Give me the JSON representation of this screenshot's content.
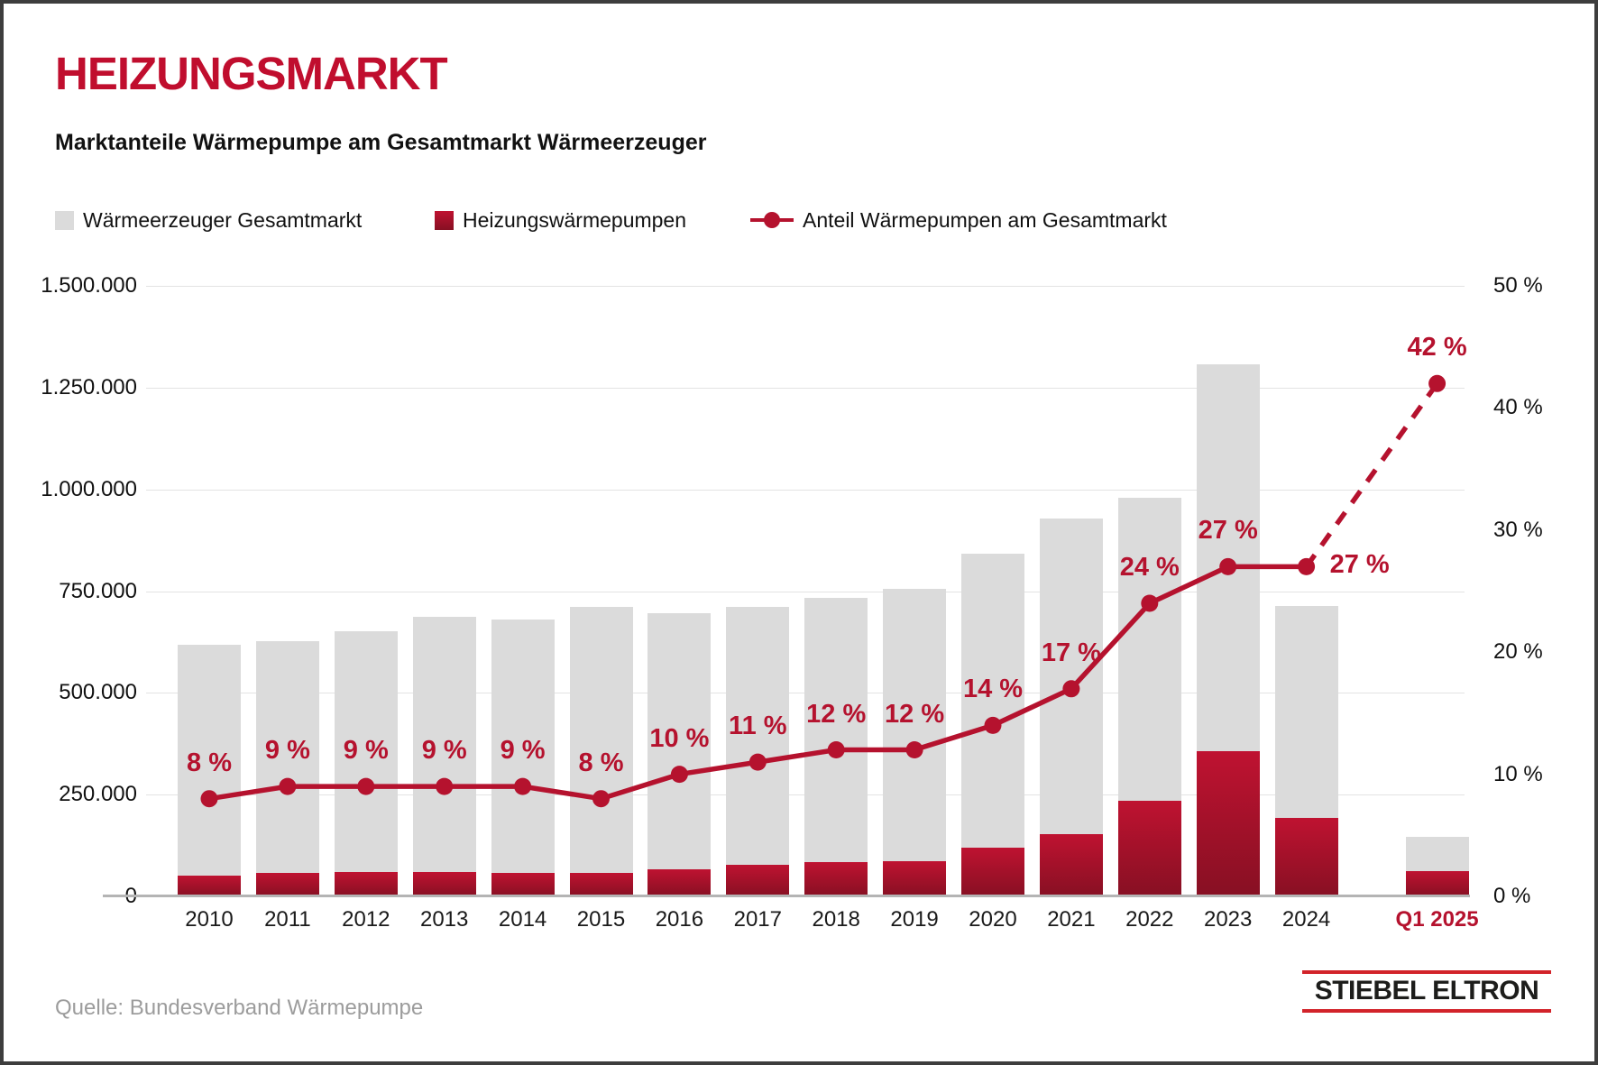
{
  "page": {
    "title": "HEIZUNGSMARKT",
    "subtitle": "Marktanteile Wärmepumpe am Gesamtmarkt Wärmeerzeuger",
    "source": "Quelle: Bundesverband Wärmepumpe",
    "logo_text": "STIEBEL ELTRON"
  },
  "legend": [
    {
      "marker": "gray-square",
      "label": "Wärmeerzeuger Gesamtmarkt"
    },
    {
      "marker": "red-square",
      "label": "Heizungswärmepumpen"
    },
    {
      "marker": "red-line-dot",
      "label": "Anteil Wärmepumpen am Gesamtmarkt"
    }
  ],
  "colors": {
    "title_red": "#c00e2e",
    "line_red": "#b5122e",
    "bar_red_top": "#bf1231",
    "bar_red_bottom": "#871023",
    "bar_gray": "#dbdbdb",
    "gridline": "#e3e3e3",
    "baseline": "#b4b4b4",
    "source_gray": "#9c9c9c",
    "logo_red": "#d2232a"
  },
  "chart_data": {
    "type": "bar",
    "subtype": "combo-bar-line-dual-axis",
    "categories": [
      "2010",
      "2011",
      "2012",
      "2013",
      "2014",
      "2015",
      "2016",
      "2017",
      "2018",
      "2019",
      "2020",
      "2021",
      "2022",
      "2023",
      "2024",
      "Q1 2025"
    ],
    "highlight_category_index": 15,
    "series": [
      {
        "name": "Wärmeerzeuger Gesamtmarkt",
        "type": "bar",
        "axis": "left",
        "values": [
          617500,
          627500,
          650500,
          686500,
          679500,
          712000,
          695500,
          712000,
          732500,
          755500,
          843000,
          929000,
          980000,
          1308000,
          712500,
          146500
        ]
      },
      {
        "name": "Heizungswärmepumpen",
        "type": "bar",
        "axis": "left",
        "values": [
          51000,
          57000,
          59500,
          60000,
          58000,
          57000,
          66500,
          78000,
          84000,
          86000,
          120000,
          154000,
          236000,
          356000,
          193000,
          62000
        ]
      },
      {
        "name": "Anteil Wärmepumpen am Gesamtmarkt",
        "type": "line",
        "axis": "right",
        "values": [
          8,
          9,
          9,
          9,
          9,
          8,
          10,
          11,
          12,
          12,
          14,
          17,
          24,
          27,
          27,
          42
        ],
        "point_labels": [
          "8 %",
          "9 %",
          "9 %",
          "9 %",
          "9 %",
          "8 %",
          "10 %",
          "11 %",
          "12 %",
          "12 %",
          "14 %",
          "17 %",
          "24 %",
          "27 %",
          "27 %",
          "42 %"
        ],
        "point_label_pos": [
          "above",
          "above",
          "above",
          "above",
          "above",
          "above",
          "above",
          "above",
          "above",
          "above",
          "above",
          "above",
          "above",
          "above",
          "right",
          "above"
        ],
        "dashed_from_index": 14
      }
    ],
    "y_left": {
      "min": 0,
      "max": 1500000,
      "tick_labels": [
        "0",
        "250.000",
        "500.000",
        "750.000",
        "1.000.000",
        "1.250.000",
        "1.500.000"
      ]
    },
    "y_right": {
      "min": 0,
      "max": 50,
      "tick_labels": [
        "0 %",
        "10 %",
        "20 %",
        "30 %",
        "40 %",
        "50 %"
      ]
    },
    "grid": "horizontal-left-ticks",
    "legend_position": "top"
  }
}
